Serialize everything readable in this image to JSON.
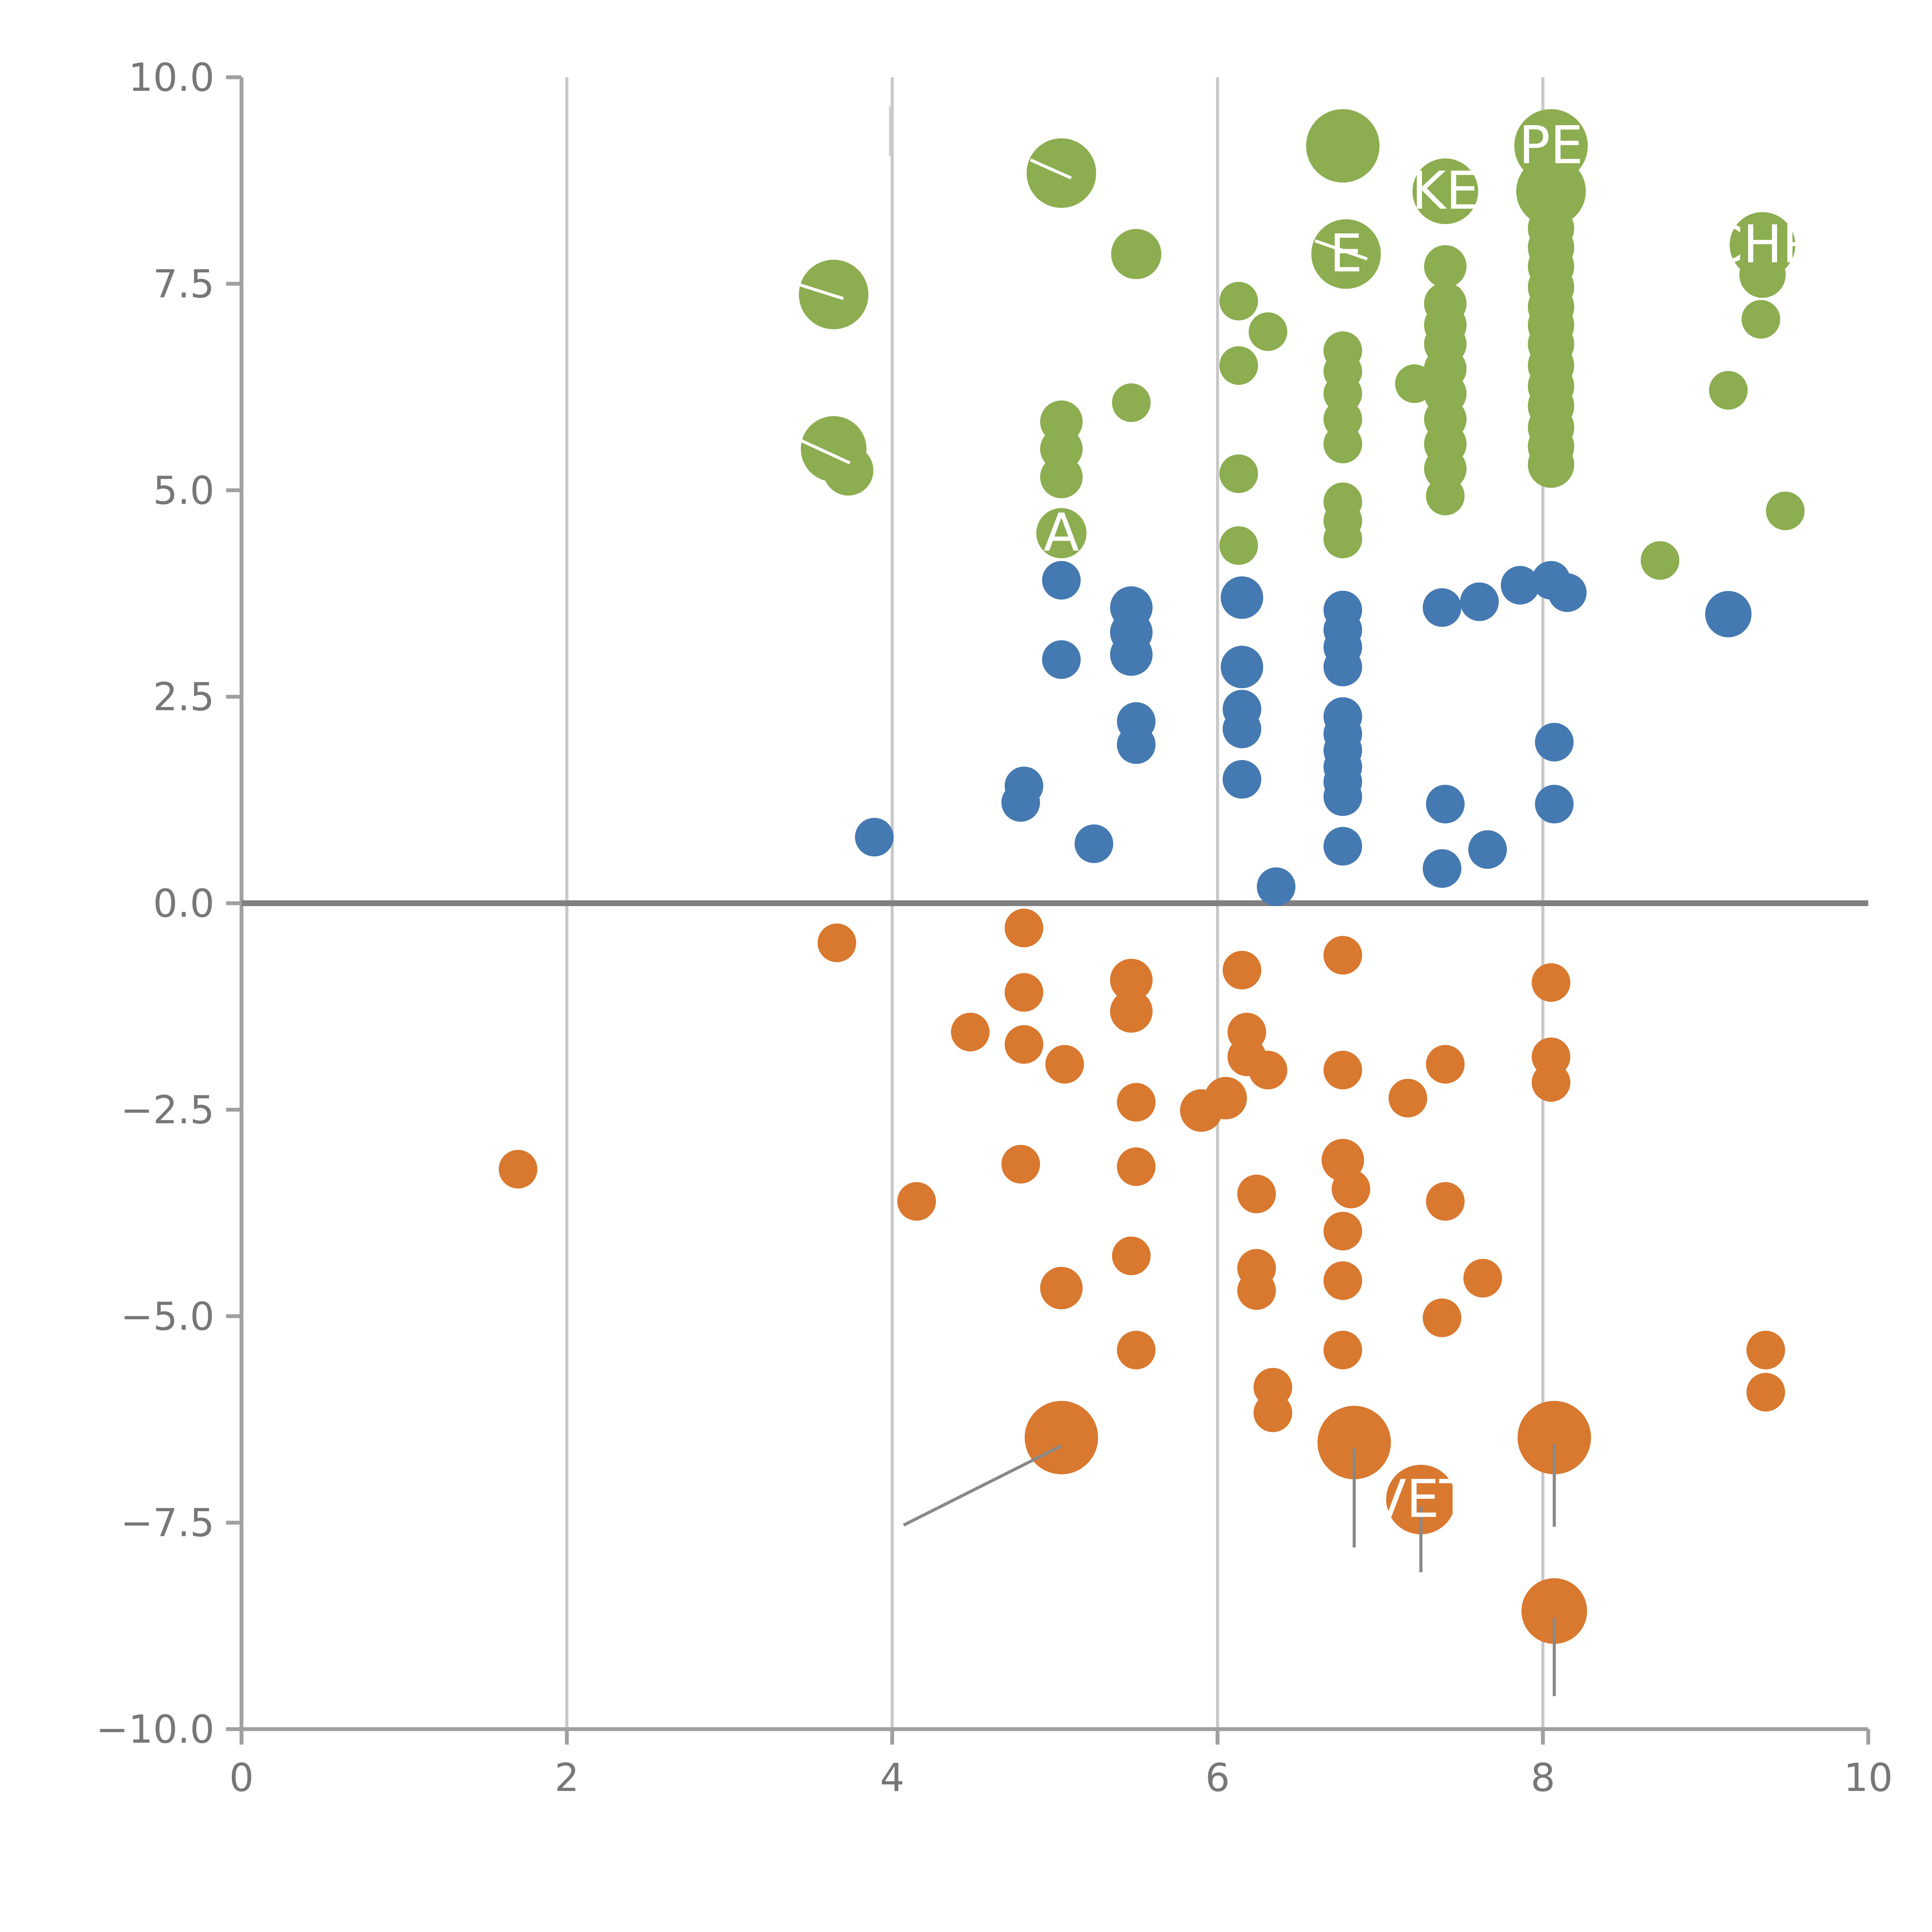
{
  "chart_data": {
    "type": "scatter",
    "title": "",
    "xlabel": "",
    "ylabel": "",
    "xlim": [
      0,
      10
    ],
    "ylim": [
      -10,
      10
    ],
    "x_ticks": [
      0,
      2,
      4,
      6,
      8,
      10
    ],
    "x_tick_labels": [
      "0",
      "2",
      "4",
      "6",
      "8",
      "10"
    ],
    "y_ticks": [
      10,
      7.5,
      5,
      2.5,
      0,
      -2.5,
      -5,
      -7.5,
      -10
    ],
    "y_tick_labels": [
      "10.0",
      "7.5",
      "5.0",
      "2.5",
      "0.0",
      "−2.5",
      "−5.0",
      "−7.5",
      "−10.0"
    ],
    "x_gridlines": [
      2,
      4,
      6,
      8
    ],
    "zero_line_y": 0,
    "legend": "none",
    "grid": "vertical-only",
    "colors": {
      "green": "#8cad50",
      "blue": "#4579b2",
      "orange": "#d9782f",
      "grid": "#c9c9c9",
      "zero_line": "#808080",
      "spine": "#a0a0a0",
      "tick_text": "#777777",
      "leader": "#888888",
      "leader_light": "#ffffff"
    },
    "series": [
      {
        "name": "green-group",
        "color": "#8cad50",
        "points": [
          [
            3.64,
            7.37,
            18
          ],
          [
            3.64,
            5.5,
            17
          ],
          [
            3.73,
            5.24,
            13
          ],
          [
            5.04,
            8.84,
            18
          ],
          [
            5.04,
            5.83,
            11
          ],
          [
            5.04,
            5.5,
            11
          ],
          [
            5.04,
            5.16,
            11
          ],
          [
            5.04,
            4.48,
            13
          ],
          [
            5.5,
            7.86,
            13
          ],
          [
            5.47,
            6.06,
            10
          ],
          [
            6.13,
            7.29,
            10
          ],
          [
            6.31,
            6.92,
            10
          ],
          [
            6.13,
            6.51,
            10
          ],
          [
            6.13,
            5.2,
            10
          ],
          [
            6.13,
            4.33,
            10
          ],
          [
            6.77,
            9.17,
            19
          ],
          [
            6.79,
            7.86,
            18
          ],
          [
            6.77,
            6.69,
            10
          ],
          [
            6.77,
            6.44,
            10
          ],
          [
            6.77,
            6.17,
            10
          ],
          [
            6.77,
            5.86,
            10
          ],
          [
            6.77,
            5.56,
            10
          ],
          [
            6.77,
            4.86,
            10
          ],
          [
            6.77,
            4.63,
            10
          ],
          [
            6.77,
            4.41,
            10
          ],
          [
            7.4,
            8.62,
            17
          ],
          [
            7.4,
            7.71,
            11
          ],
          [
            7.4,
            7.26,
            11
          ],
          [
            7.4,
            7.0,
            11
          ],
          [
            7.4,
            6.77,
            11
          ],
          [
            7.4,
            6.47,
            11
          ],
          [
            7.4,
            6.17,
            11
          ],
          [
            7.4,
            5.86,
            11
          ],
          [
            7.4,
            5.56,
            11
          ],
          [
            7.4,
            5.26,
            11
          ],
          [
            7.21,
            6.29,
            10
          ],
          [
            7.4,
            4.93,
            10
          ],
          [
            8.05,
            9.17,
            19
          ],
          [
            8.05,
            8.62,
            18
          ],
          [
            8.05,
            8.17,
            12
          ],
          [
            8.05,
            7.94,
            12
          ],
          [
            8.05,
            7.71,
            12
          ],
          [
            8.05,
            7.46,
            12
          ],
          [
            8.05,
            7.22,
            12
          ],
          [
            8.05,
            7.0,
            12
          ],
          [
            8.05,
            6.77,
            12
          ],
          [
            8.05,
            6.51,
            12
          ],
          [
            8.05,
            6.26,
            12
          ],
          [
            8.05,
            6.02,
            12
          ],
          [
            8.05,
            5.76,
            12
          ],
          [
            8.05,
            5.53,
            12
          ],
          [
            8.05,
            5.31,
            12
          ],
          [
            8.72,
            4.15,
            10
          ],
          [
            9.35,
            7.97,
            17
          ],
          [
            9.35,
            7.61,
            12
          ],
          [
            9.34,
            7.07,
            10
          ],
          [
            9.14,
            6.21,
            10
          ],
          [
            9.49,
            4.75,
            10
          ]
        ]
      },
      {
        "name": "blue-group",
        "color": "#4579b2",
        "points": [
          [
            3.89,
            0.8,
            10
          ],
          [
            4.81,
            1.42,
            10
          ],
          [
            4.79,
            1.22,
            10
          ],
          [
            5.04,
            3.91,
            10
          ],
          [
            5.04,
            2.95,
            10
          ],
          [
            5.47,
            3.58,
            11
          ],
          [
            5.47,
            3.28,
            11
          ],
          [
            5.47,
            3.01,
            11
          ],
          [
            5.5,
            2.2,
            10
          ],
          [
            5.5,
            1.92,
            10
          ],
          [
            5.24,
            0.72,
            10
          ],
          [
            6.15,
            3.7,
            11
          ],
          [
            6.15,
            2.86,
            11
          ],
          [
            6.15,
            2.35,
            10
          ],
          [
            6.15,
            2.11,
            10
          ],
          [
            6.15,
            1.5,
            10
          ],
          [
            6.36,
            0.2,
            10
          ],
          [
            6.77,
            3.55,
            10
          ],
          [
            6.77,
            3.31,
            10
          ],
          [
            6.77,
            3.1,
            10
          ],
          [
            6.77,
            2.86,
            10
          ],
          [
            6.77,
            2.26,
            10
          ],
          [
            6.77,
            2.05,
            10
          ],
          [
            6.77,
            1.85,
            10
          ],
          [
            6.77,
            1.65,
            10
          ],
          [
            6.77,
            1.47,
            10
          ],
          [
            6.77,
            1.29,
            10
          ],
          [
            6.77,
            0.69,
            10
          ],
          [
            7.38,
            3.58,
            10
          ],
          [
            7.61,
            3.65,
            10
          ],
          [
            7.4,
            1.2,
            10
          ],
          [
            7.38,
            0.42,
            10
          ],
          [
            7.66,
            0.65,
            10
          ],
          [
            7.86,
            3.85,
            10
          ],
          [
            8.05,
            3.91,
            10
          ],
          [
            8.15,
            3.76,
            10
          ],
          [
            8.07,
            1.95,
            10
          ],
          [
            8.07,
            1.2,
            10
          ],
          [
            9.14,
            3.5,
            12
          ]
        ]
      },
      {
        "name": "orange-group",
        "color": "#d9782f",
        "points": [
          [
            1.7,
            -3.22,
            10
          ],
          [
            3.66,
            -0.48,
            10
          ],
          [
            4.15,
            -3.61,
            10
          ],
          [
            4.48,
            -1.56,
            10
          ],
          [
            4.81,
            -0.3,
            10
          ],
          [
            4.81,
            -1.08,
            10
          ],
          [
            4.81,
            -1.71,
            10
          ],
          [
            5.06,
            -1.95,
            10
          ],
          [
            4.79,
            -3.16,
            10
          ],
          [
            5.04,
            -4.66,
            11
          ],
          [
            5.47,
            -0.93,
            11
          ],
          [
            5.47,
            -1.31,
            11
          ],
          [
            5.5,
            -2.41,
            10
          ],
          [
            5.5,
            -3.19,
            10
          ],
          [
            5.47,
            -4.27,
            10
          ],
          [
            5.5,
            -5.41,
            10
          ],
          [
            5.04,
            -6.47,
            19
          ],
          [
            5.9,
            -2.51,
            11
          ],
          [
            6.05,
            -2.36,
            11
          ],
          [
            6.15,
            -0.81,
            10
          ],
          [
            6.18,
            -1.56,
            10
          ],
          [
            6.18,
            -1.86,
            10
          ],
          [
            6.31,
            -2.02,
            10
          ],
          [
            6.24,
            -3.52,
            10
          ],
          [
            6.24,
            -4.42,
            10
          ],
          [
            6.24,
            -4.69,
            10
          ],
          [
            6.34,
            -5.86,
            10
          ],
          [
            6.34,
            -6.17,
            10
          ],
          [
            6.77,
            -0.63,
            10
          ],
          [
            6.77,
            -2.02,
            10
          ],
          [
            6.77,
            -3.11,
            11
          ],
          [
            6.82,
            -3.46,
            10
          ],
          [
            6.77,
            -3.97,
            10
          ],
          [
            6.77,
            -4.57,
            10
          ],
          [
            6.77,
            -5.41,
            10
          ],
          [
            6.84,
            -6.53,
            19
          ],
          [
            7.25,
            -7.22,
            18
          ],
          [
            7.17,
            -2.36,
            10
          ],
          [
            7.4,
            -1.95,
            10
          ],
          [
            7.4,
            -3.61,
            10
          ],
          [
            7.63,
            -4.54,
            10
          ],
          [
            7.38,
            -5.02,
            10
          ],
          [
            8.05,
            -0.96,
            10
          ],
          [
            8.05,
            -1.86,
            10
          ],
          [
            8.05,
            -2.17,
            10
          ],
          [
            8.07,
            -6.47,
            19
          ],
          [
            8.07,
            -8.57,
            17
          ],
          [
            9.37,
            -5.41,
            10
          ],
          [
            9.37,
            -5.92,
            10
          ]
        ]
      }
    ],
    "bubble_labels": [
      {
        "x": 5.04,
        "y": 4.48,
        "text": "A"
      },
      {
        "x": 6.79,
        "y": 7.86,
        "text": "E"
      },
      {
        "x": 7.4,
        "y": 8.62,
        "text": "KE"
      },
      {
        "x": 8.05,
        "y": 9.17,
        "text": "PE"
      },
      {
        "x": 9.35,
        "y": 7.97,
        "text": "CHR"
      },
      {
        "x": 7.25,
        "y": -7.22,
        "text": "VET"
      }
    ],
    "leader_lines": [
      {
        "x1": 5.04,
        "y1": -6.57,
        "x2": 4.07,
        "y2": -7.53,
        "color": "#888888"
      },
      {
        "x1": 6.84,
        "y1": -6.6,
        "x2": 6.84,
        "y2": -7.8,
        "color": "#888888"
      },
      {
        "x1": 7.25,
        "y1": -7.3,
        "x2": 7.25,
        "y2": -8.1,
        "color": "#888888"
      },
      {
        "x1": 8.07,
        "y1": -6.55,
        "x2": 8.07,
        "y2": -7.55,
        "color": "#888888"
      },
      {
        "x1": 8.07,
        "y1": -8.65,
        "x2": 8.07,
        "y2": -9.6,
        "color": "#888888"
      },
      {
        "x1": 3.99,
        "y1": 9.65,
        "x2": 3.99,
        "y2": 9.05,
        "color": "#cccccc"
      },
      {
        "x1": 3.38,
        "y1": 7.52,
        "x2": 3.7,
        "y2": 7.32,
        "color": "#ffffff"
      },
      {
        "x1": 3.42,
        "y1": 5.62,
        "x2": 3.74,
        "y2": 5.33,
        "color": "#ffffff"
      },
      {
        "x1": 4.85,
        "y1": 9.0,
        "x2": 5.1,
        "y2": 8.78,
        "color": "#ffffff"
      },
      {
        "x1": 6.6,
        "y1": 8.02,
        "x2": 6.92,
        "y2": 7.8,
        "color": "#ffffff"
      }
    ]
  }
}
